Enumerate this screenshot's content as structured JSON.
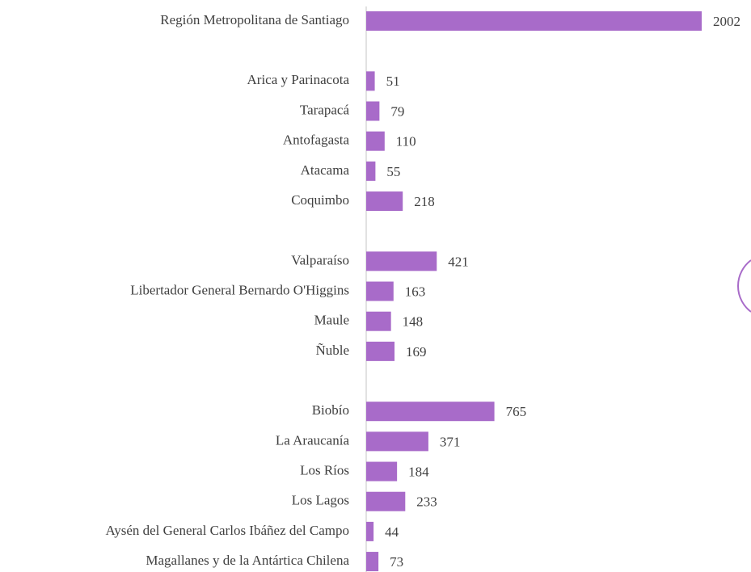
{
  "chart_data": {
    "type": "barh",
    "categories": [
      "Región Metropolitana de Santiago",
      null,
      "Arica y Parinacota",
      "Tarapacá",
      "Antofagasta",
      "Atacama",
      "Coquimbo",
      null,
      "Valparaíso",
      "Libertador General Bernardo O'Higgins",
      "Maule",
      "Ñuble",
      null,
      "Biobío",
      "La Araucanía",
      "Los Ríos",
      "Los Lagos",
      "Aysén del General Carlos Ibáñez del Campo",
      "Magallanes y de la Antártica Chilena"
    ],
    "values": [
      2002,
      null,
      51,
      79,
      110,
      55,
      218,
      null,
      421,
      163,
      148,
      169,
      null,
      765,
      371,
      184,
      233,
      44,
      73
    ],
    "color": "#a86bc9"
  }
}
